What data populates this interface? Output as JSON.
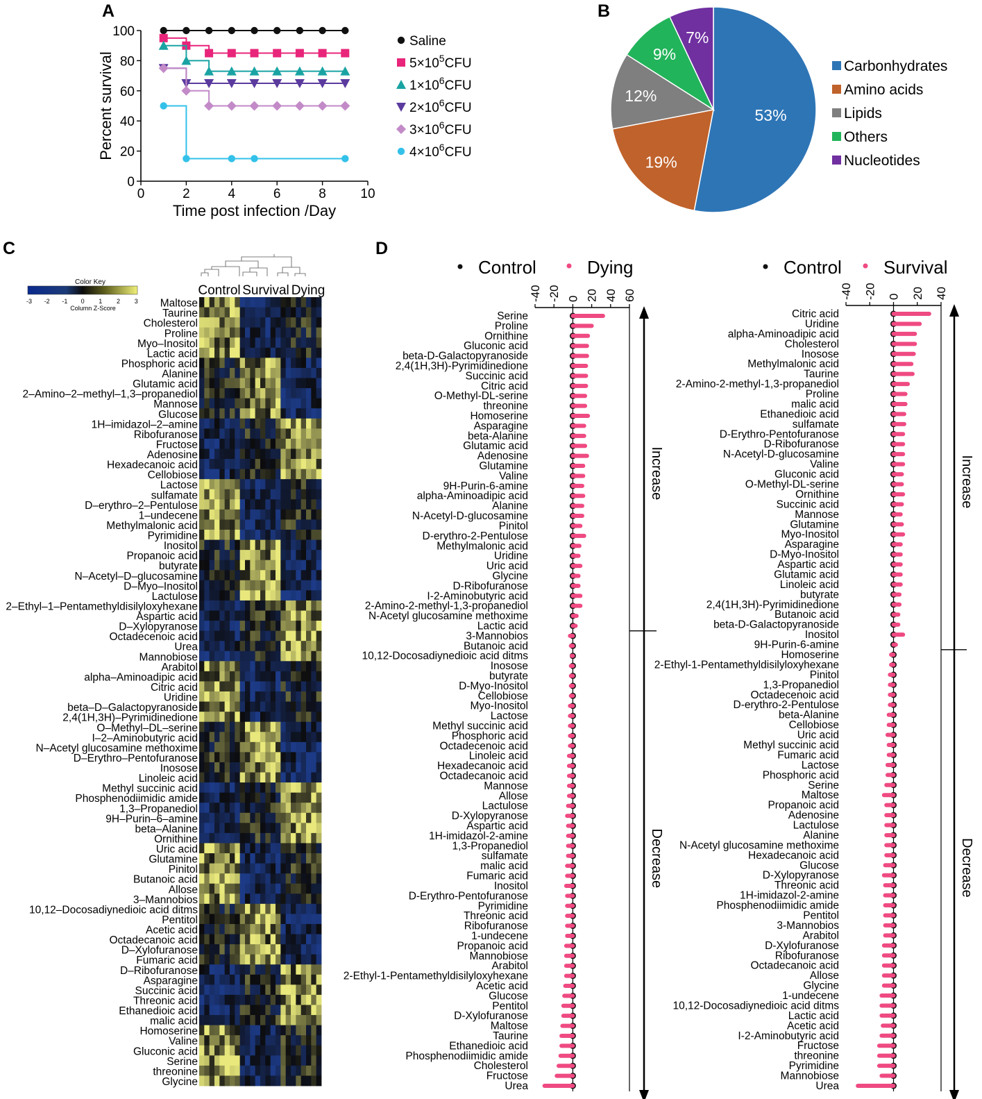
{
  "panels": {
    "a": "A",
    "b": "B",
    "c": "C",
    "d": "D"
  },
  "colors": {
    "saline": "#111111",
    "cfu5e5": "#e8257a",
    "cfu1e6": "#1aa3a3",
    "cfu2e6": "#5b3b9e",
    "cfu3e6": "#c38ac8",
    "cfu4e6": "#33c1e9",
    "carb": "#2e75b6",
    "amino": "#c0622b",
    "lipid": "#7f7f7f",
    "other": "#22b45a",
    "nuc": "#7030a0",
    "control": "#111111",
    "treat": "#ef4a82"
  },
  "chart_data": [
    {
      "type": "line",
      "id": "survival",
      "xlabel": "Time post infection /Day",
      "ylabel": "Percent survival",
      "xlim": [
        0,
        10
      ],
      "ylim": [
        0,
        100
      ],
      "xticks": [
        "0",
        "2",
        "4",
        "6",
        "8",
        "10"
      ],
      "yticks": [
        "0",
        "20",
        "40",
        "60",
        "80",
        "100"
      ],
      "series": [
        {
          "name": "Saline",
          "sup": "",
          "cfu": "",
          "color": "#111111",
          "marker": "circle",
          "points": [
            [
              1,
              100
            ],
            [
              2,
              100
            ],
            [
              3,
              100
            ],
            [
              4,
              100
            ],
            [
              5,
              100
            ],
            [
              6,
              100
            ],
            [
              7,
              100
            ],
            [
              8,
              100
            ],
            [
              9,
              100
            ]
          ]
        },
        {
          "name": "5×10",
          "sup": "5",
          "cfu": "CFU",
          "color": "#e8257a",
          "marker": "square",
          "points": [
            [
              1,
              95
            ],
            [
              2,
              90
            ],
            [
              3,
              85
            ],
            [
              4,
              85
            ],
            [
              5,
              85
            ],
            [
              6,
              85
            ],
            [
              7,
              85
            ],
            [
              8,
              85
            ],
            [
              9,
              85
            ]
          ]
        },
        {
          "name": "1×10",
          "sup": "6",
          "cfu": "CFU",
          "color": "#1aa3a3",
          "marker": "triangle-up",
          "points": [
            [
              1,
              90
            ],
            [
              2,
              80
            ],
            [
              3,
              73
            ],
            [
              4,
              73
            ],
            [
              5,
              73
            ],
            [
              6,
              73
            ],
            [
              7,
              73
            ],
            [
              8,
              73
            ],
            [
              9,
              73
            ]
          ]
        },
        {
          "name": "2×10",
          "sup": "6",
          "cfu": "CFU",
          "color": "#5b3b9e",
          "marker": "triangle-down",
          "points": [
            [
              1,
              75
            ],
            [
              2,
              65
            ],
            [
              3,
              65
            ],
            [
              4,
              65
            ],
            [
              5,
              65
            ],
            [
              6,
              65
            ],
            [
              7,
              65
            ],
            [
              8,
              65
            ],
            [
              9,
              65
            ]
          ]
        },
        {
          "name": "3×10",
          "sup": "6",
          "cfu": "CFU",
          "color": "#c38ac8",
          "marker": "diamond",
          "points": [
            [
              1,
              75
            ],
            [
              2,
              60
            ],
            [
              3,
              50
            ],
            [
              4,
              50
            ],
            [
              5,
              50
            ],
            [
              6,
              50
            ],
            [
              7,
              50
            ],
            [
              8,
              50
            ],
            [
              9,
              50
            ]
          ]
        },
        {
          "name": "4×10",
          "sup": "6",
          "cfu": "CFU",
          "color": "#33c1e9",
          "marker": "circle",
          "points": [
            [
              1,
              50
            ],
            [
              2,
              15
            ],
            [
              4,
              15
            ],
            [
              5,
              15
            ],
            [
              9,
              15
            ]
          ]
        }
      ]
    },
    {
      "type": "pie",
      "id": "classes",
      "slices": [
        {
          "label": "Carbonhydrates",
          "value": 53,
          "pct": "53%",
          "color": "#2e75b6"
        },
        {
          "label": "Amino acids",
          "value": 19,
          "pct": "19%",
          "color": "#c0622b"
        },
        {
          "label": "Lipids",
          "value": 12,
          "pct": "12%",
          "color": "#7f7f7f"
        },
        {
          "label": "Others",
          "value": 9,
          "pct": "9%",
          "color": "#22b45a"
        },
        {
          "label": "Nucleotides",
          "value": 7,
          "pct": "7%",
          "color": "#7030a0"
        }
      ]
    },
    {
      "type": "heatmap",
      "id": "heatmap",
      "key_title": "Color Key",
      "key_label": "Column Z-Score",
      "key_ticks": [
        "-3",
        "-2",
        "-1",
        "0",
        "1",
        "2",
        "3"
      ],
      "groups": [
        "Control",
        "Survival",
        "Dying"
      ],
      "rows": [
        "Maltose",
        "Taurine",
        "Cholesterol",
        "Proline",
        "Myo–Inositol",
        "Lactic acid",
        "Phosphoric acid",
        "Alanine",
        "Glutamic acid",
        "2–Amino–2–methyl–1,3–propanediol",
        "Mannose",
        "Glucose",
        "1H–imidazol–2–amine",
        "Ribofuranose",
        "Fructose",
        "Adenosine",
        "Hexadecanoic acid",
        "Cellobiose",
        "Lactose",
        "sulfamate",
        "D–erythro–2–Pentulose",
        "1–undecene",
        "Methylmalonic acid",
        "Pyrimidine",
        "Inositol",
        "Propanoic acid",
        "butyrate",
        "N–Acetyl–D–glucosamine",
        "D–Myo–Inositol",
        "Lactulose",
        "2–Ethyl–1–Pentamethyldisilyloxyhexane",
        "Aspartic acid",
        "D–Xylopyranose",
        "Octadecenoic acid",
        "Urea",
        "Mannobiose",
        "Arabitol",
        "alpha–Aminoadipic acid",
        "Citric acid",
        "Uridine",
        "beta–D–Galactopyranoside",
        "2,4(1H,3H)–Pyrimidinedione",
        "O–Methyl–DL–serine",
        "I–2–Aminobutyric acid",
        "N–Acetyl glucosamine methoxime",
        "D–Erythro–Pentofuranose",
        "Inosose",
        "Linoleic acid",
        "Methyl succinic acid",
        "Phosphenodiimidic amide",
        "1,3–Propanediol",
        "9H–Purin–6–amine",
        "beta–Alanine",
        "Ornithine",
        "Uric acid",
        "Glutamine",
        "Pinitol",
        "Butanoic acid",
        "Allose",
        "3–Mannobios",
        "10,12–Docosadiynedioic acid ditms",
        "Pentitol",
        "Acetic acid",
        "Octadecanoic acid",
        "D–Xylofuranose",
        "Fumaric acid",
        "D–Ribofuranose",
        "Asparagine",
        "Succinic acid",
        "Threonic acid",
        "Ethanedioic acid",
        "malic acid",
        "Homoserine",
        "Valine",
        "Gluconic acid",
        "Serine",
        "threonine",
        "Glycine"
      ]
    },
    {
      "type": "scatter",
      "id": "dying",
      "legend": [
        "Control",
        "Dying"
      ],
      "xlim": [
        -40,
        60
      ],
      "xticks": [
        "-40",
        "-20",
        "0",
        "20",
        "40",
        "60"
      ],
      "side_labels": [
        "Increase",
        "Decrease"
      ],
      "split_after": 31,
      "items": [
        [
          "Serine",
          32
        ],
        [
          "Proline",
          20
        ],
        [
          "Ornithine",
          16
        ],
        [
          "Gluconic acid",
          15
        ],
        [
          "beta-D-Galactopyranoside",
          15
        ],
        [
          "2,4(1H,3H)-Pyrimidinedione",
          14
        ],
        [
          "Succinic acid",
          14
        ],
        [
          "Citric acid",
          14
        ],
        [
          "O-Methyl-DL-serine",
          13
        ],
        [
          "threonine",
          13
        ],
        [
          "Homoserine",
          16
        ],
        [
          "Asparagine",
          12
        ],
        [
          "beta-Alanine",
          12
        ],
        [
          "Glutamic acid",
          13
        ],
        [
          "Adenosine",
          15
        ],
        [
          "Glutamine",
          11
        ],
        [
          "Valine",
          11
        ],
        [
          "9H-Purin-6-amine",
          10
        ],
        [
          "alpha-Aminoadipic acid",
          11
        ],
        [
          "Alanine",
          10
        ],
        [
          "N-Acetyl-D-glucosamine",
          10
        ],
        [
          "Pinitol",
          8
        ],
        [
          "D-erythro-2-Pentulose",
          12
        ],
        [
          "Methylmalonic acid",
          7
        ],
        [
          "Uridine",
          6
        ],
        [
          "Uric acid",
          8
        ],
        [
          "Glycine",
          6
        ],
        [
          "D-Ribofuranose",
          6
        ],
        [
          "I-2-Aminobutyric acid",
          8
        ],
        [
          "2-Amino-2-methyl-1,3-propanediol",
          8
        ],
        [
          "N-Acetyl glucosamine methoxime",
          4
        ],
        [
          "Lactic acid",
          3
        ],
        [
          "3-Mannobios",
          -3
        ],
        [
          "Butanoic acid",
          -2
        ],
        [
          "10,12-Docosadiynedioic acid ditms",
          -1
        ],
        [
          "Inosose",
          -2
        ],
        [
          "butyrate",
          -2
        ],
        [
          "D-Myo-Inositol",
          -2
        ],
        [
          "Cellobiose",
          -2
        ],
        [
          "Myo-Inositol",
          -3
        ],
        [
          "Lactose",
          -3
        ],
        [
          "Methyl succinic acid",
          -3
        ],
        [
          "Phosphoric acid",
          -3
        ],
        [
          "Octadecenoic acid",
          -3
        ],
        [
          "Linoleic acid",
          -4
        ],
        [
          "Hexadecanoic acid",
          -4
        ],
        [
          "Octadecanoic acid",
          -4
        ],
        [
          "Mannose",
          -4
        ],
        [
          "Allose",
          -4
        ],
        [
          "Lactulose",
          -5
        ],
        [
          "D-Xylopyranose",
          -6
        ],
        [
          "Aspartic acid",
          -5
        ],
        [
          "1H-imidazol-2-amine",
          -5
        ],
        [
          "1,3-Propanediol",
          -5
        ],
        [
          "sulfamate",
          -5
        ],
        [
          "malic acid",
          -6
        ],
        [
          "Fumaric acid",
          -6
        ],
        [
          "Inositol",
          -7
        ],
        [
          "D-Erythro-Pentofuranose",
          -6
        ],
        [
          "Pyrimidine",
          -6
        ],
        [
          "Threonic acid",
          -6
        ],
        [
          "Ribofuranose",
          -6
        ],
        [
          "1-undecene",
          -6
        ],
        [
          "Propanoic acid",
          -7
        ],
        [
          "Mannobiose",
          -7
        ],
        [
          "Arabitol",
          -7
        ],
        [
          "2-Ethyl-1-Pentamethyldisilyloxyhexane",
          -7
        ],
        [
          "Acetic acid",
          -8
        ],
        [
          "Glucose",
          -9
        ],
        [
          "Pentitol",
          -10
        ],
        [
          "D-Xylofuranose",
          -10
        ],
        [
          "Maltose",
          -11
        ],
        [
          "Taurine",
          -12
        ],
        [
          "Ethanedioic acid",
          -12
        ],
        [
          "Phosphenodiimidic amide",
          -13
        ],
        [
          "Cholesterol",
          -15
        ],
        [
          "Fructose",
          -17
        ],
        [
          "Urea",
          -30
        ]
      ]
    },
    {
      "type": "scatter",
      "id": "survival_dots",
      "legend": [
        "Control",
        "Survival"
      ],
      "xlim": [
        -40,
        40
      ],
      "xticks": [
        "-40",
        "-20",
        "0",
        "20",
        "40"
      ],
      "side_labels": [
        "Increase",
        "Decrease"
      ],
      "split_after": 33,
      "items": [
        [
          "Citric acid",
          30
        ],
        [
          "Uridine",
          22
        ],
        [
          "alpha-Aminoadipic acid",
          18
        ],
        [
          "Cholesterol",
          18
        ],
        [
          "Inosose",
          17
        ],
        [
          "Methylmalonic acid",
          15
        ],
        [
          "Taurine",
          16
        ],
        [
          "2-Amino-2-methyl-1,3-propanediol",
          12
        ],
        [
          "Proline",
          10
        ],
        [
          "malic acid",
          10
        ],
        [
          "Ethanedioic acid",
          9
        ],
        [
          "sulfamate",
          9
        ],
        [
          "D-Erythro-Pentofuranose",
          8
        ],
        [
          "D-Ribofuranose",
          8
        ],
        [
          "N-Acetyl-D-glucosamine",
          8
        ],
        [
          "Valine",
          8
        ],
        [
          "Gluconic acid",
          7
        ],
        [
          "O-Methyl-DL-serine",
          7
        ],
        [
          "Ornithine",
          8
        ],
        [
          "Succinic acid",
          7
        ],
        [
          "Mannose",
          6
        ],
        [
          "Glutamine",
          7
        ],
        [
          "Myo-Inositol",
          8
        ],
        [
          "Asparagine",
          6
        ],
        [
          "D-Myo-Inositol",
          6
        ],
        [
          "Aspartic acid",
          6
        ],
        [
          "Glutamic acid",
          6
        ],
        [
          "Linoleic acid",
          6
        ],
        [
          "butyrate",
          5
        ],
        [
          "2,4(1H,3H)-Pyrimidinedione",
          5
        ],
        [
          "Butanoic acid",
          4
        ],
        [
          "beta-D-Galactopyranoside",
          4
        ],
        [
          "Inositol",
          8
        ],
        [
          "9H-Purin-6-amine",
          2
        ],
        [
          "Homoserine",
          -2
        ],
        [
          "2-Ethyl-1-Pentamethyldisilyloxyhexane",
          -2
        ],
        [
          "Pinitol",
          -3
        ],
        [
          "1,3-Propanediol",
          -3
        ],
        [
          "Octadecenoic acid",
          -3
        ],
        [
          "D-erythro-2-Pentulose",
          -3
        ],
        [
          "beta-Alanine",
          -4
        ],
        [
          "Cellobiose",
          -4
        ],
        [
          "Uric acid",
          -5
        ],
        [
          "Methyl succinic acid",
          -4
        ],
        [
          "Fumaric acid",
          -4
        ],
        [
          "Lactose",
          -5
        ],
        [
          "Phosphoric acid",
          -5
        ],
        [
          "Serine",
          -6
        ],
        [
          "Maltose",
          -8
        ],
        [
          "Propanoic acid",
          -6
        ],
        [
          "Adenosine",
          -6
        ],
        [
          "Lactulose",
          -6
        ],
        [
          "Alanine",
          -6
        ],
        [
          "N-Acetyl glucosamine methoxime",
          -6
        ],
        [
          "Hexadecanoic acid",
          -6
        ],
        [
          "Glucose",
          -7
        ],
        [
          "D-Xylopyranose",
          -8
        ],
        [
          "Threonic acid",
          -7
        ],
        [
          "1H-imidazol-2-amine",
          -7
        ],
        [
          "Phosphenodiimidic amide",
          -7
        ],
        [
          "Pentitol",
          -7
        ],
        [
          "3-Mannobios",
          -7
        ],
        [
          "Arabitol",
          -7
        ],
        [
          "D-Xylofuranose",
          -8
        ],
        [
          "Ribofuranose",
          -8
        ],
        [
          "Octadecanoic acid",
          -8
        ],
        [
          "Allose",
          -8
        ],
        [
          "Glycine",
          -8
        ],
        [
          "1-undecene",
          -10
        ],
        [
          "10,12-Docosadiynedioic acid ditms",
          -10
        ],
        [
          "Lactic acid",
          -10
        ],
        [
          "Acetic acid",
          -9
        ],
        [
          "I-2-Aminobutyric acid",
          -10
        ],
        [
          "Fructose",
          -12
        ],
        [
          "threonine",
          -12
        ],
        [
          "Pyrimidine",
          -12
        ],
        [
          "Mannobiose",
          -10
        ],
        [
          "Urea",
          -30
        ]
      ]
    }
  ]
}
